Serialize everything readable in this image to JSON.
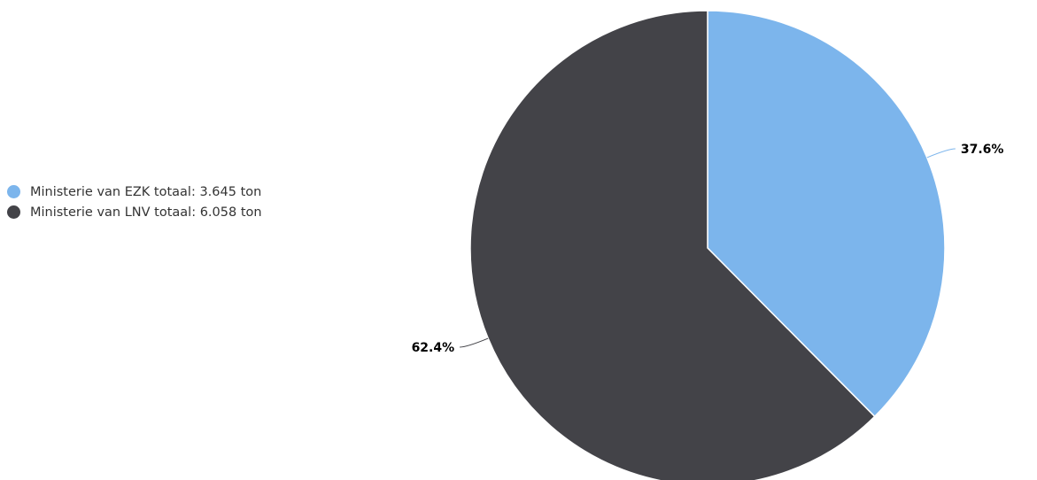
{
  "chart_data": {
    "type": "pie",
    "title": "",
    "series": [
      {
        "name": "",
        "slices": [
          {
            "label": "Ministerie van EZK totaal: 3.645 ton",
            "value": 3645,
            "percent_label": "37.6%",
            "color": "#7cb5ec"
          },
          {
            "label": "Ministerie van LNV totaal: 6.058 ton",
            "value": 6058,
            "percent_label": "62.4%",
            "color": "#434348"
          }
        ]
      }
    ],
    "legend_placement": "left",
    "start_angle_deg": 0,
    "direction": "clockwise"
  }
}
